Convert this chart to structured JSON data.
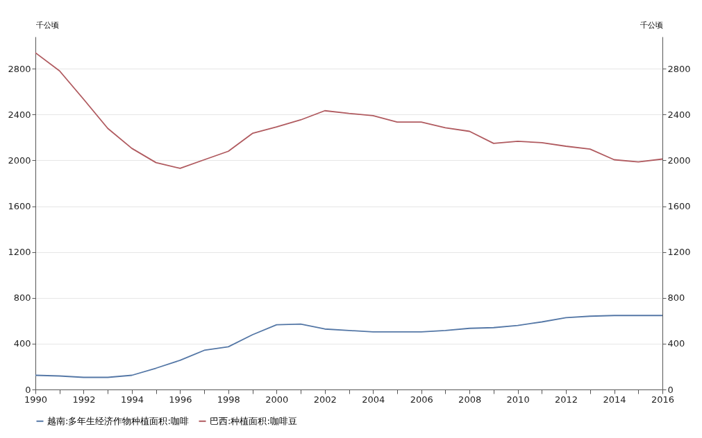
{
  "chart_data": {
    "type": "line",
    "x": [
      1990,
      1991,
      1992,
      1993,
      1994,
      1995,
      1996,
      1997,
      1998,
      1999,
      2000,
      2001,
      2002,
      2003,
      2004,
      2005,
      2006,
      2007,
      2008,
      2009,
      2010,
      2011,
      2012,
      2013,
      2014,
      2015,
      2016
    ],
    "series": [
      {
        "name": "越南:多年生经济作物种植面积:咖啡",
        "color": "#5477a6",
        "values": [
          124,
          118,
          106,
          106,
          124,
          186,
          255,
          342,
          373,
          478,
          565,
          571,
          528,
          515,
          503,
          503,
          503,
          515,
          534,
          540,
          559,
          590,
          627,
          640,
          646,
          646,
          646
        ]
      },
      {
        "name": "巴西:种植面积:咖啡豆",
        "color": "#b05a5f",
        "values": [
          2940,
          2782,
          2534,
          2280,
          2105,
          1981,
          1931,
          2006,
          2080,
          2236,
          2292,
          2354,
          2434,
          2410,
          2391,
          2335,
          2335,
          2285,
          2254,
          2149,
          2167,
          2155,
          2124,
          2099,
          2006,
          1987,
          2012
        ]
      }
    ],
    "ylabel": "千公顷",
    "y2label": "千公顷",
    "xlim": [
      1990,
      2016
    ],
    "xticks": [
      1990,
      {
        "value": 1991,
        "label": null
      },
      1992,
      {
        "value": 1993,
        "label": null
      },
      1994,
      {
        "value": 1995,
        "label": null
      },
      1996,
      {
        "value": 1997,
        "label": null
      },
      1998,
      {
        "value": 1999,
        "label": null
      },
      2000,
      {
        "value": 2001,
        "label": null
      },
      2002,
      {
        "value": 2003,
        "label": null
      },
      2004,
      {
        "value": 2005,
        "label": null
      },
      2006,
      {
        "value": 2007,
        "label": null
      },
      2008,
      {
        "value": 2009,
        "label": null
      },
      2010,
      {
        "value": 2011,
        "label": null
      },
      2012,
      {
        "value": 2013,
        "label": null
      },
      2014,
      {
        "value": 2015,
        "label": null
      },
      2016
    ],
    "ylim": [
      0,
      3080
    ],
    "yticks": [
      0,
      400,
      800,
      1200,
      1600,
      2000,
      2400,
      2800
    ],
    "y2lim": [
      0,
      3080
    ],
    "y2ticks": [
      0,
      400,
      800,
      1200,
      1600,
      2000,
      2400,
      2800
    ],
    "grid": "y",
    "legend": "bottom",
    "line_style": "solid",
    "marker": "none"
  }
}
